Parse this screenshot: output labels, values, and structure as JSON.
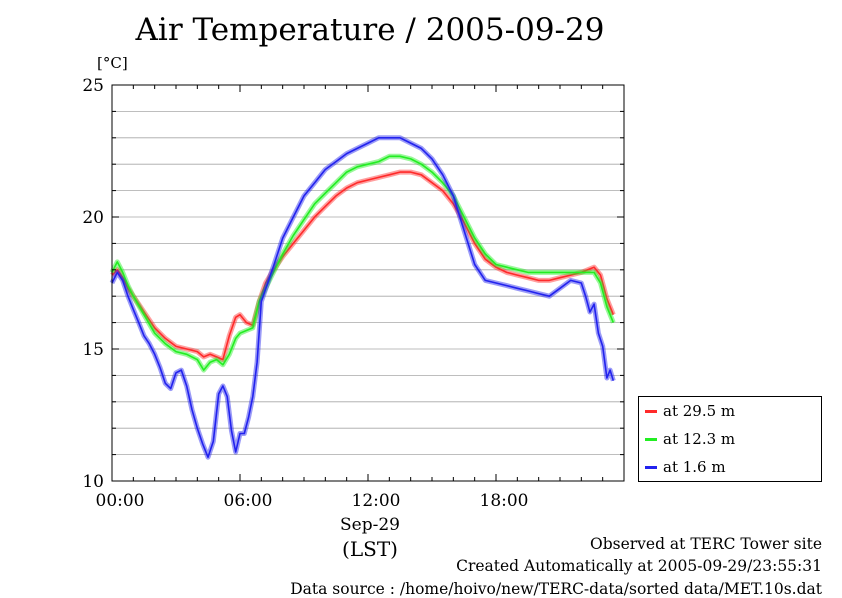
{
  "chart_data": {
    "type": "line",
    "title": "Air Temperature / 2005-09-29",
    "ylabel": "[°C]",
    "xlabel_date": "Sep-29",
    "xlabel_tz": "(LST)",
    "xlim": [
      0,
      24
    ],
    "ylim": [
      10,
      25
    ],
    "x_ticks": [
      {
        "value": 0,
        "label": "00:00"
      },
      {
        "value": 6,
        "label": "06:00"
      },
      {
        "value": 12,
        "label": "12:00"
      },
      {
        "value": 18,
        "label": "18:00"
      }
    ],
    "y_ticks": [
      {
        "value": 10,
        "label": "10"
      },
      {
        "value": 15,
        "label": "15"
      },
      {
        "value": 20,
        "label": "20"
      },
      {
        "value": 25,
        "label": "25"
      }
    ],
    "grid": true,
    "legend_position": "right-bottom",
    "series": [
      {
        "name": "at 29.5 m",
        "color": "#ff2a2a",
        "x": [
          0,
          0.25,
          0.5,
          0.75,
          1,
          1.5,
          2,
          2.5,
          3,
          3.5,
          4,
          4.3,
          4.6,
          4.9,
          5.2,
          5.5,
          5.8,
          6,
          6.3,
          6.6,
          6.9,
          7.2,
          7.5,
          8,
          8.5,
          9,
          9.5,
          10,
          10.5,
          11,
          11.5,
          12,
          12.5,
          13,
          13.5,
          14,
          14.5,
          15,
          15.5,
          16,
          16.5,
          17,
          17.5,
          18,
          18.5,
          19,
          19.5,
          20,
          20.5,
          21,
          21.5,
          22,
          22.3,
          22.6,
          22.9,
          23.2,
          23.5
        ],
        "y": [
          17.8,
          18.0,
          17.7,
          17.3,
          17.0,
          16.4,
          15.8,
          15.4,
          15.1,
          15.0,
          14.9,
          14.7,
          14.8,
          14.7,
          14.6,
          15.5,
          16.2,
          16.3,
          16.0,
          15.9,
          16.8,
          17.5,
          17.9,
          18.5,
          19.0,
          19.5,
          20.0,
          20.4,
          20.8,
          21.1,
          21.3,
          21.4,
          21.5,
          21.6,
          21.7,
          21.7,
          21.6,
          21.3,
          21.0,
          20.5,
          19.8,
          19.0,
          18.4,
          18.1,
          17.9,
          17.8,
          17.7,
          17.6,
          17.6,
          17.7,
          17.8,
          17.9,
          18.0,
          18.1,
          17.8,
          16.9,
          16.3
        ]
      },
      {
        "name": "at 12.3 m",
        "color": "#22ee22",
        "x": [
          0,
          0.25,
          0.5,
          0.75,
          1,
          1.5,
          2,
          2.5,
          3,
          3.5,
          4,
          4.3,
          4.6,
          4.9,
          5.2,
          5.5,
          5.8,
          6,
          6.3,
          6.6,
          6.9,
          7.2,
          7.5,
          8,
          8.5,
          9,
          9.5,
          10,
          10.5,
          11,
          11.5,
          12,
          12.5,
          13,
          13.5,
          14,
          14.5,
          15,
          15.5,
          16,
          16.5,
          17,
          17.5,
          18,
          18.5,
          19,
          19.5,
          20,
          20.5,
          21,
          21.5,
          22,
          22.3,
          22.6,
          22.9,
          23.2,
          23.5
        ],
        "y": [
          17.9,
          18.3,
          17.9,
          17.4,
          17.0,
          16.3,
          15.6,
          15.2,
          14.9,
          14.8,
          14.6,
          14.2,
          14.5,
          14.6,
          14.4,
          14.8,
          15.4,
          15.6,
          15.7,
          15.8,
          16.8,
          17.3,
          17.8,
          18.6,
          19.3,
          19.9,
          20.5,
          20.9,
          21.3,
          21.7,
          21.9,
          22.0,
          22.1,
          22.3,
          22.3,
          22.2,
          22.0,
          21.7,
          21.3,
          20.8,
          20.0,
          19.2,
          18.6,
          18.2,
          18.1,
          18.0,
          17.9,
          17.9,
          17.9,
          17.9,
          17.9,
          17.9,
          17.9,
          17.9,
          17.5,
          16.6,
          16.0
        ]
      },
      {
        "name": "at 1.6 m",
        "color": "#2222ee",
        "x": [
          0,
          0.25,
          0.5,
          0.75,
          1,
          1.25,
          1.5,
          1.75,
          2,
          2.25,
          2.5,
          2.75,
          3,
          3.25,
          3.5,
          3.75,
          4,
          4.25,
          4.5,
          4.75,
          5,
          5.2,
          5.4,
          5.6,
          5.8,
          6,
          6.2,
          6.4,
          6.6,
          6.8,
          7,
          7.3,
          7.6,
          8,
          8.5,
          9,
          9.5,
          10,
          10.5,
          11,
          11.5,
          12,
          12.5,
          13,
          13.5,
          14,
          14.5,
          15,
          15.5,
          16,
          16.5,
          17,
          17.5,
          18,
          18.5,
          19,
          19.5,
          20,
          20.5,
          21,
          21.5,
          22,
          22.2,
          22.4,
          22.6,
          22.8,
          23,
          23.2,
          23.35,
          23.5
        ],
        "y": [
          17.5,
          17.9,
          17.6,
          17.0,
          16.5,
          16.0,
          15.5,
          15.2,
          14.8,
          14.3,
          13.7,
          13.5,
          14.1,
          14.2,
          13.6,
          12.7,
          12.0,
          11.4,
          10.9,
          11.5,
          13.3,
          13.6,
          13.2,
          11.9,
          11.1,
          11.8,
          11.8,
          12.4,
          13.2,
          14.5,
          16.8,
          17.5,
          18.2,
          19.2,
          20.0,
          20.8,
          21.3,
          21.8,
          22.1,
          22.4,
          22.6,
          22.8,
          23.0,
          23.0,
          23.0,
          22.8,
          22.6,
          22.2,
          21.6,
          20.8,
          19.5,
          18.2,
          17.6,
          17.5,
          17.4,
          17.3,
          17.2,
          17.1,
          17.0,
          17.3,
          17.6,
          17.5,
          17.0,
          16.4,
          16.7,
          15.6,
          15.1,
          13.9,
          14.2,
          13.8
        ]
      }
    ]
  },
  "footer": {
    "line1": "Observed at TERC Tower site",
    "line2": "Created Automatically at 2005-09-29/23:55:31",
    "line3": "Data source : /home/hoivo/new/TERC-data/sorted  data/MET.10s.dat"
  }
}
